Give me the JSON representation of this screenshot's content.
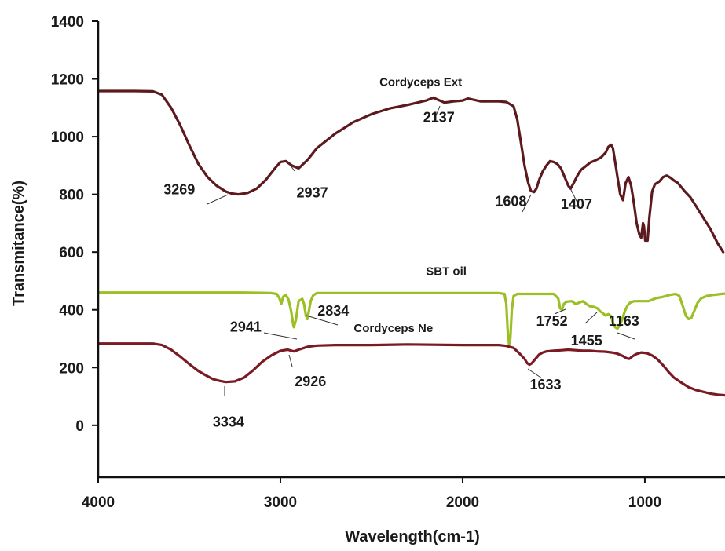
{
  "chart_data": {
    "type": "line",
    "title": "",
    "xlabel": "Wavelength(cm-1)",
    "ylabel": "Transmitance(%)",
    "xlim": [
      4000,
      560
    ],
    "ylim": [
      -180,
      1400
    ],
    "x_ticks": [
      4000,
      3000,
      2000,
      1000
    ],
    "y_ticks": [
      1400,
      1200,
      1000,
      800,
      600,
      400,
      200,
      0
    ],
    "grid": false,
    "series": [
      {
        "name": "Cordyceps Ext",
        "color": "#5c1a1f",
        "points": [
          [
            4000,
            1158
          ],
          [
            3800,
            1158
          ],
          [
            3700,
            1157
          ],
          [
            3650,
            1145
          ],
          [
            3600,
            1100
          ],
          [
            3550,
            1040
          ],
          [
            3500,
            970
          ],
          [
            3450,
            905
          ],
          [
            3400,
            860
          ],
          [
            3350,
            830
          ],
          [
            3300,
            810
          ],
          [
            3269,
            803
          ],
          [
            3230,
            800
          ],
          [
            3180,
            805
          ],
          [
            3130,
            820
          ],
          [
            3080,
            850
          ],
          [
            3030,
            890
          ],
          [
            3000,
            912
          ],
          [
            2970,
            915
          ],
          [
            2937,
            900
          ],
          [
            2900,
            890
          ],
          [
            2850,
            920
          ],
          [
            2800,
            960
          ],
          [
            2700,
            1010
          ],
          [
            2600,
            1050
          ],
          [
            2500,
            1078
          ],
          [
            2400,
            1098
          ],
          [
            2300,
            1110
          ],
          [
            2200,
            1125
          ],
          [
            2160,
            1135
          ],
          [
            2137,
            1128
          ],
          [
            2100,
            1118
          ],
          [
            2050,
            1122
          ],
          [
            2000,
            1125
          ],
          [
            1970,
            1132
          ],
          [
            1900,
            1122
          ],
          [
            1800,
            1122
          ],
          [
            1760,
            1120
          ],
          [
            1720,
            1105
          ],
          [
            1700,
            1060
          ],
          [
            1680,
            980
          ],
          [
            1660,
            900
          ],
          [
            1640,
            840
          ],
          [
            1625,
            812
          ],
          [
            1608,
            808
          ],
          [
            1595,
            820
          ],
          [
            1580,
            850
          ],
          [
            1560,
            880
          ],
          [
            1540,
            900
          ],
          [
            1520,
            915
          ],
          [
            1500,
            912
          ],
          [
            1480,
            905
          ],
          [
            1460,
            890
          ],
          [
            1440,
            860
          ],
          [
            1420,
            830
          ],
          [
            1407,
            820
          ],
          [
            1390,
            840
          ],
          [
            1370,
            865
          ],
          [
            1350,
            885
          ],
          [
            1330,
            895
          ],
          [
            1300,
            910
          ],
          [
            1270,
            918
          ],
          [
            1240,
            928
          ],
          [
            1215,
            945
          ],
          [
            1200,
            965
          ],
          [
            1185,
            972
          ],
          [
            1175,
            960
          ],
          [
            1165,
            920
          ],
          [
            1150,
            860
          ],
          [
            1135,
            800
          ],
          [
            1120,
            780
          ],
          [
            1105,
            840
          ],
          [
            1090,
            860
          ],
          [
            1075,
            830
          ],
          [
            1060,
            770
          ],
          [
            1045,
            700
          ],
          [
            1030,
            660
          ],
          [
            1020,
            650
          ],
          [
            1010,
            700
          ],
          [
            1005,
            690
          ],
          [
            998,
            640
          ],
          [
            985,
            640
          ],
          [
            975,
            720
          ],
          [
            960,
            810
          ],
          [
            945,
            835
          ],
          [
            920,
            845
          ],
          [
            900,
            860
          ],
          [
            880,
            865
          ],
          [
            860,
            858
          ],
          [
            840,
            848
          ],
          [
            820,
            840
          ],
          [
            800,
            825
          ],
          [
            780,
            810
          ],
          [
            750,
            790
          ],
          [
            720,
            760
          ],
          [
            680,
            720
          ],
          [
            640,
            680
          ],
          [
            600,
            630
          ],
          [
            570,
            600
          ]
        ]
      },
      {
        "name": "SBT oil",
        "color": "#9bbf25",
        "points": [
          [
            4000,
            460
          ],
          [
            3200,
            460
          ],
          [
            3050,
            458
          ],
          [
            3020,
            455
          ],
          [
            3005,
            440
          ],
          [
            2995,
            420
          ],
          [
            2985,
            445
          ],
          [
            2970,
            452
          ],
          [
            2955,
            435
          ],
          [
            2941,
            395
          ],
          [
            2930,
            350
          ],
          [
            2926,
            340
          ],
          [
            2915,
            365
          ],
          [
            2900,
            430
          ],
          [
            2880,
            438
          ],
          [
            2870,
            420
          ],
          [
            2860,
            380
          ],
          [
            2852,
            368
          ],
          [
            2845,
            390
          ],
          [
            2834,
            430
          ],
          [
            2820,
            450
          ],
          [
            2800,
            458
          ],
          [
            2000,
            458
          ],
          [
            1800,
            458
          ],
          [
            1770,
            455
          ],
          [
            1760,
            420
          ],
          [
            1752,
            320
          ],
          [
            1745,
            280
          ],
          [
            1738,
            300
          ],
          [
            1730,
            400
          ],
          [
            1720,
            448
          ],
          [
            1700,
            455
          ],
          [
            1500,
            455
          ],
          [
            1475,
            440
          ],
          [
            1465,
            405
          ],
          [
            1455,
            400
          ],
          [
            1445,
            420
          ],
          [
            1430,
            428
          ],
          [
            1400,
            430
          ],
          [
            1380,
            420
          ],
          [
            1360,
            425
          ],
          [
            1340,
            430
          ],
          [
            1320,
            420
          ],
          [
            1300,
            412
          ],
          [
            1280,
            410
          ],
          [
            1260,
            405
          ],
          [
            1245,
            395
          ],
          [
            1230,
            388
          ],
          [
            1215,
            380
          ],
          [
            1200,
            385
          ],
          [
            1185,
            378
          ],
          [
            1175,
            355
          ],
          [
            1163,
            340
          ],
          [
            1150,
            335
          ],
          [
            1140,
            345
          ],
          [
            1125,
            365
          ],
          [
            1110,
            395
          ],
          [
            1095,
            415
          ],
          [
            1080,
            425
          ],
          [
            1060,
            430
          ],
          [
            1020,
            430
          ],
          [
            980,
            430
          ],
          [
            940,
            440
          ],
          [
            900,
            445
          ],
          [
            860,
            452
          ],
          [
            830,
            455
          ],
          [
            810,
            448
          ],
          [
            790,
            410
          ],
          [
            775,
            380
          ],
          [
            760,
            368
          ],
          [
            745,
            372
          ],
          [
            730,
            395
          ],
          [
            710,
            425
          ],
          [
            690,
            440
          ],
          [
            660,
            448
          ],
          [
            620,
            452
          ],
          [
            580,
            455
          ],
          [
            560,
            456
          ]
        ]
      },
      {
        "name": "Cordyceps Ne",
        "color": "#7a1a22",
        "points": [
          [
            4000,
            283
          ],
          [
            3700,
            283
          ],
          [
            3650,
            278
          ],
          [
            3600,
            262
          ],
          [
            3550,
            238
          ],
          [
            3500,
            212
          ],
          [
            3450,
            188
          ],
          [
            3400,
            170
          ],
          [
            3370,
            160
          ],
          [
            3334,
            154
          ],
          [
            3300,
            150
          ],
          [
            3250,
            152
          ],
          [
            3200,
            165
          ],
          [
            3150,
            190
          ],
          [
            3100,
            220
          ],
          [
            3050,
            242
          ],
          [
            3000,
            258
          ],
          [
            2960,
            262
          ],
          [
            2926,
            256
          ],
          [
            2900,
            262
          ],
          [
            2850,
            272
          ],
          [
            2800,
            276
          ],
          [
            2700,
            278
          ],
          [
            2500,
            278
          ],
          [
            2300,
            280
          ],
          [
            2000,
            278
          ],
          [
            1800,
            278
          ],
          [
            1760,
            275
          ],
          [
            1720,
            268
          ],
          [
            1690,
            250
          ],
          [
            1660,
            230
          ],
          [
            1645,
            215
          ],
          [
            1633,
            210
          ],
          [
            1620,
            215
          ],
          [
            1600,
            230
          ],
          [
            1580,
            245
          ],
          [
            1560,
            252
          ],
          [
            1540,
            256
          ],
          [
            1500,
            258
          ],
          [
            1455,
            260
          ],
          [
            1420,
            262
          ],
          [
            1380,
            260
          ],
          [
            1340,
            258
          ],
          [
            1300,
            258
          ],
          [
            1260,
            256
          ],
          [
            1220,
            255
          ],
          [
            1180,
            252
          ],
          [
            1150,
            248
          ],
          [
            1120,
            240
          ],
          [
            1100,
            232
          ],
          [
            1085,
            230
          ],
          [
            1070,
            238
          ],
          [
            1050,
            246
          ],
          [
            1020,
            252
          ],
          [
            990,
            250
          ],
          [
            960,
            242
          ],
          [
            930,
            228
          ],
          [
            900,
            208
          ],
          [
            870,
            185
          ],
          [
            840,
            165
          ],
          [
            800,
            148
          ],
          [
            760,
            132
          ],
          [
            720,
            122
          ],
          [
            680,
            116
          ],
          [
            640,
            110
          ],
          [
            600,
            106
          ],
          [
            560,
            104
          ]
        ]
      }
    ],
    "annotations": [
      {
        "text": "Cordyceps Ext",
        "x": 2230,
        "y": 1175
      },
      {
        "text": "2137",
        "x": 2130,
        "y": 1050
      },
      {
        "text": "3269",
        "x": 3555,
        "y": 800
      },
      {
        "text": "2937",
        "x": 2825,
        "y": 790
      },
      {
        "text": "1608",
        "x": 1735,
        "y": 760
      },
      {
        "text": "1407",
        "x": 1375,
        "y": 750
      },
      {
        "text": "SBT oil",
        "x": 2090,
        "y": 520
      },
      {
        "text": "2834",
        "x": 2710,
        "y": 380
      },
      {
        "text": "2941",
        "x": 3190,
        "y": 325
      },
      {
        "text": "Cordyceps Ne",
        "x": 2380,
        "y": 323
      },
      {
        "text": "1752",
        "x": 1510,
        "y": 345
      },
      {
        "text": "1163",
        "x": 1115,
        "y": 345
      },
      {
        "text": "1455",
        "x": 1320,
        "y": 277
      },
      {
        "text": "2926",
        "x": 2835,
        "y": 135
      },
      {
        "text": "1633",
        "x": 1545,
        "y": 125
      },
      {
        "text": "3334",
        "x": 3285,
        "y": -5
      }
    ]
  }
}
